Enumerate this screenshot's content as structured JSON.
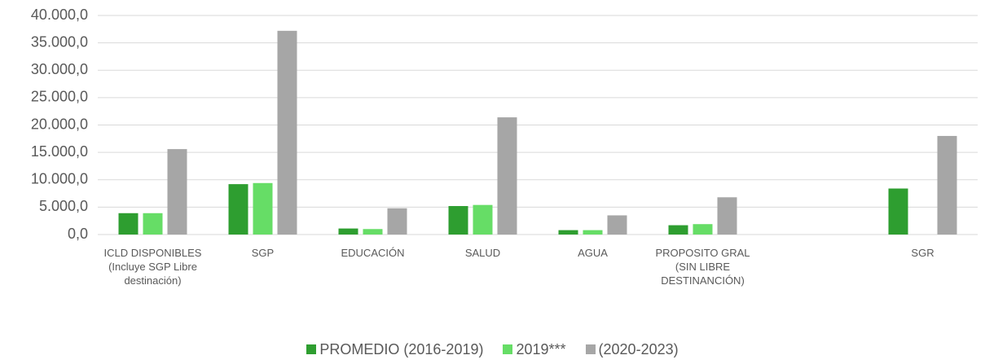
{
  "chart_data": {
    "type": "bar",
    "categories": [
      "ICLD DISPONIBLES (Incluye SGP Libre destinación)",
      "SGP",
      "EDUCACIÓN",
      "SALUD",
      "AGUA",
      "PROPOSITO GRAL (SIN LIBRE DESTINANCIÓN)",
      null,
      "SGR"
    ],
    "series": [
      {
        "name": "PROMEDIO (2016-2019)",
        "color": "#2e9e30",
        "values": [
          3900,
          9200,
          1100,
          5200,
          800,
          1700,
          null,
          8400
        ]
      },
      {
        "name": "2019***",
        "color": "#66dd66",
        "values": [
          3900,
          9400,
          1000,
          5400,
          800,
          1900,
          null,
          null
        ]
      },
      {
        "name": "(2020-2023)",
        "color": "#a6a6a6",
        "values": [
          15600,
          37200,
          4800,
          21400,
          3500,
          6800,
          null,
          18000
        ]
      }
    ],
    "ylim": [
      0,
      40000
    ],
    "yticks": [
      {
        "value": 0,
        "label": "0,0"
      },
      {
        "value": 5000,
        "label": "5.000,0"
      },
      {
        "value": 10000,
        "label": "10.000,0"
      },
      {
        "value": 15000,
        "label": "15.000,0"
      },
      {
        "value": 20000,
        "label": "20.000,0"
      },
      {
        "value": 25000,
        "label": "25.000,0"
      },
      {
        "value": 30000,
        "label": "30.000,0"
      },
      {
        "value": 35000,
        "label": "35.000,0"
      },
      {
        "value": 40000,
        "label": "40.000,0"
      }
    ],
    "grid": true,
    "legend": "bottom"
  }
}
